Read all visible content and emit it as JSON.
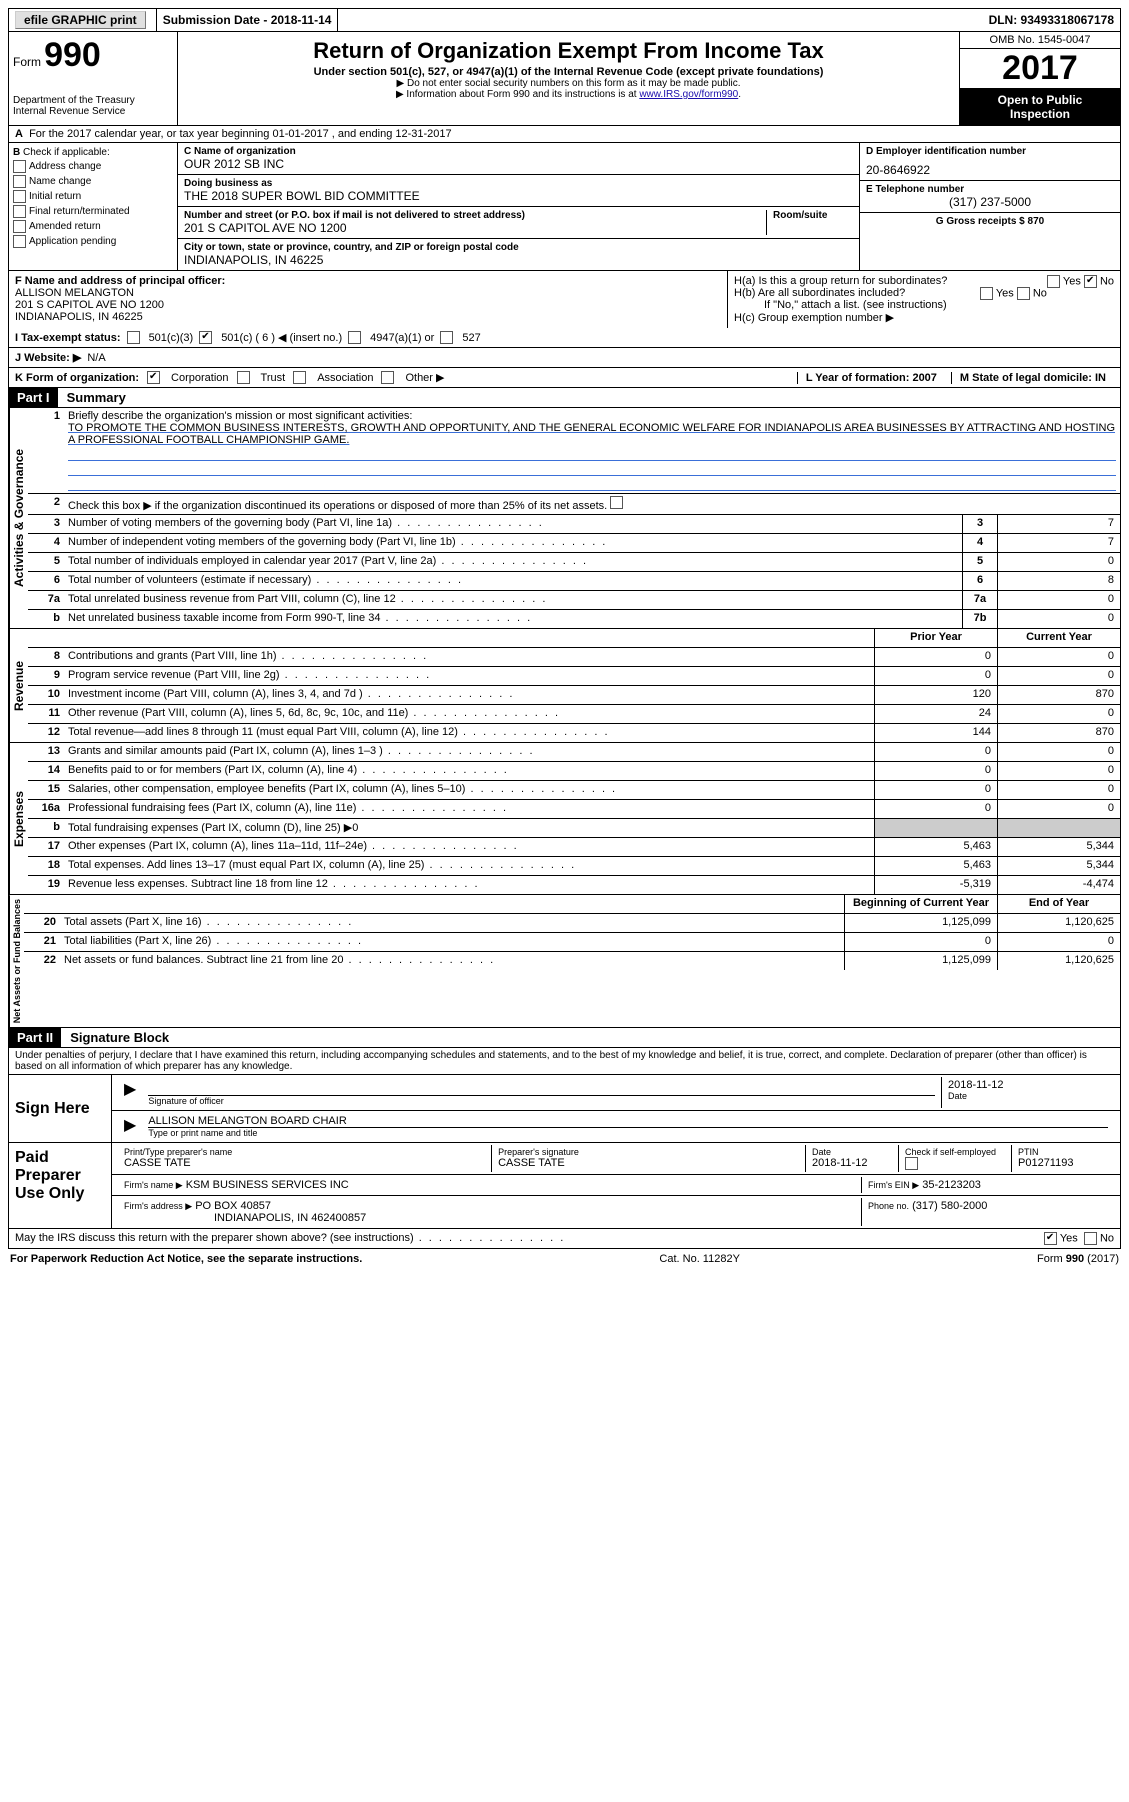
{
  "topbar": {
    "efile": "efile GRAPHIC print",
    "submission_label": "Submission Date - 2018-11-14",
    "dln_label": "DLN: 93493318067178"
  },
  "header": {
    "form_label": "Form",
    "form_number": "990",
    "dept1": "Department of the Treasury",
    "dept2": "Internal Revenue Service",
    "title": "Return of Organization Exempt From Income Tax",
    "subtitle": "Under section 501(c), 527, or 4947(a)(1) of the Internal Revenue Code (except private foundations)",
    "note1": "▶ Do not enter social security numbers on this form as it may be made public.",
    "note2_pre": "▶ Information about Form 990 and its instructions is at ",
    "note2_link": "www.IRS.gov/form990",
    "omb": "OMB No. 1545-0047",
    "year": "2017",
    "inspection1": "Open to Public",
    "inspection2": "Inspection"
  },
  "A": {
    "text": "For the 2017 calendar year, or tax year beginning 01-01-2017   , and ending 12-31-2017"
  },
  "B": {
    "title": "Check if applicable:",
    "opts": [
      "Address change",
      "Name change",
      "Initial return",
      "Final return/terminated",
      "Amended return",
      "Application pending"
    ]
  },
  "C": {
    "name_label": "C Name of organization",
    "name": "OUR 2012 SB INC",
    "dba_label": "Doing business as",
    "dba": "THE 2018 SUPER BOWL BID COMMITTEE",
    "addr_label": "Number and street (or P.O. box if mail is not delivered to street address)",
    "room_label": "Room/suite",
    "addr": "201 S CAPITOL AVE NO 1200",
    "city_label": "City or town, state or province, country, and ZIP or foreign postal code",
    "city": "INDIANAPOLIS, IN  46225"
  },
  "D": {
    "label": "D Employer identification number",
    "val": "20-8646922"
  },
  "E": {
    "label": "E Telephone number",
    "val": "(317) 237-5000"
  },
  "G": {
    "label": "G Gross receipts $ 870"
  },
  "F": {
    "label": "F  Name and address of principal officer:",
    "name": "ALLISON MELANGTON",
    "addr1": "201 S CAPITOL AVE NO 1200",
    "addr2": "INDIANAPOLIS, IN  46225"
  },
  "H": {
    "a": "H(a)  Is this a group return for subordinates?",
    "b": "H(b)  Are all subordinates included?",
    "note": "If \"No,\" attach a list. (see instructions)",
    "c": "H(c)  Group exemption number ▶",
    "yes": "Yes",
    "no": "No"
  },
  "I": {
    "label": "I  Tax-exempt status:",
    "o1": "501(c)(3)",
    "o2": "501(c) ( 6 ) ◀ (insert no.)",
    "o3": "4947(a)(1) or",
    "o4": "527"
  },
  "J": {
    "label": "J  Website: ▶",
    "val": "N/A"
  },
  "K": {
    "label": "K Form of organization:",
    "o1": "Corporation",
    "o2": "Trust",
    "o3": "Association",
    "o4": "Other ▶"
  },
  "L": {
    "label": "L Year of formation: 2007"
  },
  "M": {
    "label": "M State of legal domicile: IN"
  },
  "partI": {
    "header": "Part I",
    "title": "Summary",
    "l1a": "Briefly describe the organization's mission or most significant activities:",
    "l1b": "TO PROMOTE THE COMMON BUSINESS INTERESTS, GROWTH AND OPPORTUNITY, AND THE GENERAL ECONOMIC WELFARE FOR INDIANAPOLIS AREA BUSINESSES BY ATTRACTING AND HOSTING A PROFESSIONAL FOOTBALL CHAMPIONSHIP GAME.",
    "l2": "Check this box ▶        if the organization discontinued its operations or disposed of more than 25% of its net assets.",
    "vlab1": "Activities & Governance",
    "rows_ag": [
      {
        "n": "3",
        "d": "Number of voting members of the governing body (Part VI, line 1a)",
        "b": "3",
        "v": "7"
      },
      {
        "n": "4",
        "d": "Number of independent voting members of the governing body (Part VI, line 1b)",
        "b": "4",
        "v": "7"
      },
      {
        "n": "5",
        "d": "Total number of individuals employed in calendar year 2017 (Part V, line 2a)",
        "b": "5",
        "v": "0"
      },
      {
        "n": "6",
        "d": "Total number of volunteers (estimate if necessary)",
        "b": "6",
        "v": "8"
      },
      {
        "n": "7a",
        "d": "Total unrelated business revenue from Part VIII, column (C), line 12",
        "b": "7a",
        "v": "0"
      },
      {
        "n": "b",
        "d": "Net unrelated business taxable income from Form 990-T, line 34",
        "b": "7b",
        "v": "0"
      }
    ],
    "ch_prior": "Prior Year",
    "ch_current": "Current Year",
    "vlab2": "Revenue",
    "rows_rev": [
      {
        "n": "8",
        "d": "Contributions and grants (Part VIII, line 1h)",
        "p": "0",
        "c": "0"
      },
      {
        "n": "9",
        "d": "Program service revenue (Part VIII, line 2g)",
        "p": "0",
        "c": "0"
      },
      {
        "n": "10",
        "d": "Investment income (Part VIII, column (A), lines 3, 4, and 7d )",
        "p": "120",
        "c": "870"
      },
      {
        "n": "11",
        "d": "Other revenue (Part VIII, column (A), lines 5, 6d, 8c, 9c, 10c, and 11e)",
        "p": "24",
        "c": "0"
      },
      {
        "n": "12",
        "d": "Total revenue—add lines 8 through 11 (must equal Part VIII, column (A), line 12)",
        "p": "144",
        "c": "870"
      }
    ],
    "vlab3": "Expenses",
    "rows_exp": [
      {
        "n": "13",
        "d": "Grants and similar amounts paid (Part IX, column (A), lines 1–3 )",
        "p": "0",
        "c": "0"
      },
      {
        "n": "14",
        "d": "Benefits paid to or for members (Part IX, column (A), line 4)",
        "p": "0",
        "c": "0"
      },
      {
        "n": "15",
        "d": "Salaries, other compensation, employee benefits (Part IX, column (A), lines 5–10)",
        "p": "0",
        "c": "0"
      },
      {
        "n": "16a",
        "d": "Professional fundraising fees (Part IX, column (A), line 11e)",
        "p": "0",
        "c": "0"
      },
      {
        "n": "b",
        "d": "Total fundraising expenses (Part IX, column (D), line 25) ▶0",
        "p": "",
        "c": "",
        "shaded": true
      },
      {
        "n": "17",
        "d": "Other expenses (Part IX, column (A), lines 11a–11d, 11f–24e)",
        "p": "5,463",
        "c": "5,344"
      },
      {
        "n": "18",
        "d": "Total expenses. Add lines 13–17 (must equal Part IX, column (A), line 25)",
        "p": "5,463",
        "c": "5,344"
      },
      {
        "n": "19",
        "d": "Revenue less expenses. Subtract line 18 from line 12",
        "p": "-5,319",
        "c": "-4,474"
      }
    ],
    "ch_begin": "Beginning of Current Year",
    "ch_end": "End of Year",
    "vlab4": "Net Assets or Fund Balances",
    "rows_na": [
      {
        "n": "20",
        "d": "Total assets (Part X, line 16)",
        "p": "1,125,099",
        "c": "1,120,625"
      },
      {
        "n": "21",
        "d": "Total liabilities (Part X, line 26)",
        "p": "0",
        "c": "0"
      },
      {
        "n": "22",
        "d": "Net assets or fund balances. Subtract line 21 from line 20",
        "p": "1,125,099",
        "c": "1,120,625"
      }
    ]
  },
  "partII": {
    "header": "Part II",
    "title": "Signature Block",
    "perjury": "Under penalties of perjury, I declare that I have examined this return, including accompanying schedules and statements, and to the best of my knowledge and belief, it is true, correct, and complete. Declaration of preparer (other than officer) is based on all information of which preparer has any knowledge."
  },
  "sign": {
    "here": "Sign Here",
    "sig_label": "Signature of officer",
    "date_label": "Date",
    "date": "2018-11-12",
    "name": "ALLISON MELANGTON  BOARD CHAIR",
    "name_label": "Type or print name and title"
  },
  "preparer": {
    "label": "Paid Preparer Use Only",
    "h1": "Print/Type preparer's name",
    "v1": "CASSE TATE",
    "h2": "Preparer's signature",
    "v2": "CASSE TATE",
    "h3": "Date",
    "v3": "2018-11-12",
    "h4": "Check        if self-employed",
    "h5": "PTIN",
    "v5": "P01271193",
    "firm_name_l": "Firm's name      ▶",
    "firm_name": "KSM BUSINESS SERVICES INC",
    "firm_ein_l": "Firm's EIN ▶",
    "firm_ein": "35-2123203",
    "firm_addr_l": "Firm's address ▶",
    "firm_addr1": "PO BOX 40857",
    "firm_addr2": "INDIANAPOLIS, IN  462400857",
    "phone_l": "Phone no.",
    "phone": "(317) 580-2000"
  },
  "discuss": {
    "q": "May the IRS discuss this return with the preparer shown above? (see instructions)",
    "yes": "Yes",
    "no": "No"
  },
  "footer": {
    "left": "For Paperwork Reduction Act Notice, see the separate instructions.",
    "mid": "Cat. No. 11282Y",
    "right": "Form 990 (2017)"
  }
}
